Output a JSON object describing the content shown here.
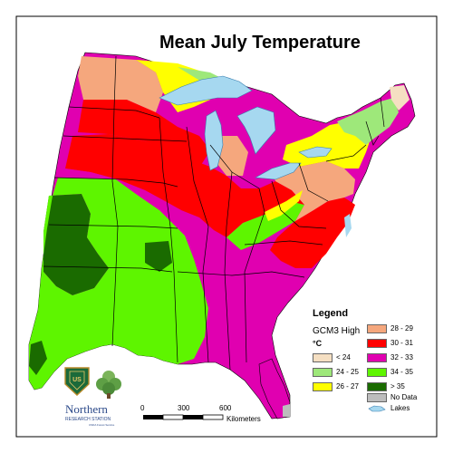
{
  "title": "Mean July Temperature",
  "legend": {
    "title": "Legend",
    "model": "GCM3 High",
    "unit": "°C",
    "classes": [
      {
        "label": "< 24",
        "color": "#f5dfc2"
      },
      {
        "label": "24 - 25",
        "color": "#9ee87a"
      },
      {
        "label": "26 - 27",
        "color": "#ffff00"
      },
      {
        "label": "28 - 29",
        "color": "#f5a77d"
      },
      {
        "label": "30 - 31",
        "color": "#ff0000"
      },
      {
        "label": "32 - 33",
        "color": "#e000b0"
      },
      {
        "label": "34 - 35",
        "color": "#5ef500"
      },
      {
        "label": "> 35",
        "color": "#1a6b00"
      },
      {
        "label": "No Data",
        "color": "#bdbdbd"
      },
      {
        "label": "Lakes",
        "color": "#a6d8f0"
      }
    ]
  },
  "scale": {
    "ticks": [
      "0",
      "300",
      "600"
    ],
    "unit": "Kilometers"
  },
  "logo": {
    "name": "Northern",
    "sub": "RESEARCH STATION",
    "agency": "USDA Forest Service",
    "shield_text": "US"
  }
}
